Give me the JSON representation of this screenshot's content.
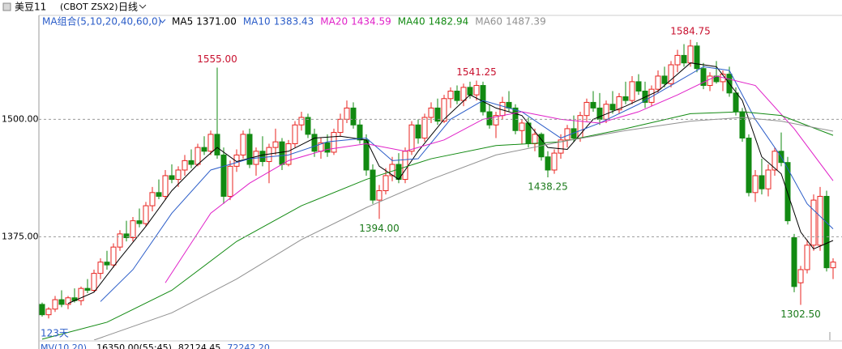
{
  "chart_data": {
    "type": "candlestick",
    "title": "美豆11",
    "subtitle": "(CBOT ZSX2)",
    "period": "日线",
    "ma_group": "MA组合(5,10,20,40,60,0)",
    "bar_count_label": "123天",
    "volume_header": [
      "MV(10,20)",
      "16350.00(55:45)",
      "82124.45",
      "72242.20"
    ],
    "up_color": "#e8231f",
    "down_color": "#128a12",
    "ylim": [
      1265,
      1608
    ],
    "yticks": [
      {
        "value": 1500,
        "label": "1500.00"
      },
      {
        "value": 1375,
        "label": "1375.00"
      }
    ],
    "grid": true,
    "open": [
      1303,
      1292,
      1298,
      1308,
      1303,
      1310,
      1307,
      1320,
      1318,
      1336,
      1348,
      1345,
      1364,
      1378,
      1374,
      1392,
      1389,
      1408,
      1422,
      1418,
      1440,
      1436,
      1446,
      1456,
      1452,
      1470,
      1466,
      1484,
      1462,
      1418,
      1450,
      1462,
      1484,
      1452,
      1466,
      1455,
      1470,
      1476,
      1452,
      1474,
      1494,
      1502,
      1484,
      1466,
      1475,
      1465,
      1486,
      1500,
      1512,
      1494,
      1478,
      1446,
      1414,
      1424,
      1440,
      1452,
      1436,
      1466,
      1494,
      1480,
      1502,
      1512,
      1498,
      1522,
      1530,
      1520,
      1534,
      1526,
      1536,
      1508,
      1494,
      1504,
      1518,
      1512,
      1488,
      1496,
      1474,
      1484,
      1460,
      1446,
      1464,
      1478,
      1490,
      1480,
      1504,
      1518,
      1512,
      1500,
      1516,
      1510,
      1524,
      1520,
      1540,
      1530,
      1518,
      1532,
      1546,
      1538,
      1558,
      1568,
      1560,
      1578,
      1554,
      1536,
      1546,
      1540,
      1548,
      1528,
      1508,
      1480,
      1422,
      1440,
      1426,
      1446,
      1466,
      1454,
      1374,
      1326,
      1340,
      1366,
      1366,
      1418,
      1342
    ],
    "high": [
      1305,
      1300,
      1312,
      1318,
      1312,
      1320,
      1322,
      1330,
      1340,
      1352,
      1360,
      1368,
      1382,
      1392,
      1396,
      1405,
      1412,
      1428,
      1436,
      1446,
      1452,
      1450,
      1462,
      1468,
      1474,
      1482,
      1488,
      1555,
      1470,
      1456,
      1468,
      1488,
      1490,
      1470,
      1482,
      1474,
      1490,
      1480,
      1478,
      1498,
      1508,
      1506,
      1490,
      1480,
      1484,
      1490,
      1506,
      1520,
      1518,
      1500,
      1484,
      1452,
      1430,
      1448,
      1460,
      1464,
      1470,
      1498,
      1500,
      1506,
      1518,
      1522,
      1526,
      1534,
      1536,
      1538,
      1540,
      1541.25,
      1540,
      1516,
      1508,
      1524,
      1530,
      1516,
      1500,
      1502,
      1490,
      1486,
      1466,
      1468,
      1484,
      1494,
      1504,
      1508,
      1522,
      1530,
      1528,
      1520,
      1530,
      1528,
      1540,
      1546,
      1548,
      1540,
      1536,
      1552,
      1556,
      1562,
      1574,
      1580,
      1584.75,
      1582,
      1560,
      1550,
      1562,
      1552,
      1556,
      1534,
      1512,
      1484,
      1446,
      1458,
      1452,
      1470,
      1486,
      1460,
      1378,
      1344,
      1372,
      1420,
      1428,
      1424,
      1352
    ],
    "low": [
      1290,
      1288,
      1295,
      1300,
      1298,
      1305,
      1302,
      1315,
      1316,
      1330,
      1340,
      1342,
      1360,
      1370,
      1370,
      1385,
      1386,
      1402,
      1415,
      1414,
      1432,
      1428,
      1440,
      1448,
      1450,
      1462,
      1462,
      1458,
      1410,
      1414,
      1444,
      1458,
      1448,
      1440,
      1450,
      1432,
      1462,
      1446,
      1450,
      1470,
      1488,
      1480,
      1460,
      1458,
      1460,
      1462,
      1482,
      1496,
      1490,
      1474,
      1440,
      1410,
      1394,
      1420,
      1434,
      1432,
      1432,
      1462,
      1474,
      1476,
      1496,
      1494,
      1496,
      1512,
      1516,
      1514,
      1522,
      1520,
      1504,
      1490,
      1480,
      1500,
      1508,
      1484,
      1474,
      1470,
      1466,
      1456,
      1438.25,
      1442,
      1458,
      1470,
      1476,
      1476,
      1498,
      1508,
      1494,
      1496,
      1506,
      1506,
      1516,
      1516,
      1526,
      1512,
      1514,
      1528,
      1534,
      1534,
      1550,
      1556,
      1556,
      1550,
      1532,
      1530,
      1538,
      1530,
      1524,
      1504,
      1476,
      1418,
      1412,
      1420,
      1418,
      1440,
      1450,
      1388,
      1316,
      1302.5,
      1336,
      1360,
      1360,
      1338,
      1330
    ],
    "close": [
      1292,
      1298,
      1308,
      1303,
      1310,
      1307,
      1320,
      1318,
      1336,
      1348,
      1345,
      1364,
      1378,
      1374,
      1392,
      1389,
      1408,
      1422,
      1418,
      1440,
      1436,
      1446,
      1456,
      1452,
      1470,
      1466,
      1484,
      1462,
      1418,
      1450,
      1462,
      1484,
      1452,
      1466,
      1455,
      1470,
      1476,
      1452,
      1474,
      1494,
      1502,
      1484,
      1466,
      1475,
      1465,
      1486,
      1500,
      1512,
      1494,
      1478,
      1446,
      1414,
      1424,
      1440,
      1452,
      1436,
      1466,
      1494,
      1480,
      1502,
      1512,
      1498,
      1522,
      1530,
      1520,
      1534,
      1526,
      1536,
      1508,
      1494,
      1504,
      1518,
      1512,
      1488,
      1496,
      1474,
      1484,
      1460,
      1446,
      1464,
      1478,
      1490,
      1480,
      1504,
      1518,
      1512,
      1500,
      1516,
      1510,
      1524,
      1520,
      1540,
      1530,
      1518,
      1532,
      1546,
      1538,
      1558,
      1568,
      1560,
      1578,
      1554,
      1536,
      1546,
      1540,
      1548,
      1528,
      1508,
      1480,
      1422,
      1440,
      1426,
      1446,
      1466,
      1454,
      1392,
      1322,
      1340,
      1366,
      1414,
      1418,
      1342,
      1348
    ],
    "annotations": [
      {
        "index": 27,
        "value": 1555,
        "label": "1555.00",
        "color": "#c8102e",
        "side": "above"
      },
      {
        "index": 52,
        "value": 1394,
        "label": "1394.00",
        "color": "#1a7a1a",
        "side": "below"
      },
      {
        "index": 67,
        "value": 1541.25,
        "label": "1541.25",
        "color": "#c8102e",
        "side": "above"
      },
      {
        "index": 78,
        "value": 1438.25,
        "label": "1438.25",
        "color": "#1a7a1a",
        "side": "below"
      },
      {
        "index": 100,
        "value": 1584.75,
        "label": "1584.75",
        "color": "#c8102e",
        "side": "above"
      },
      {
        "index": 117,
        "value": 1302.5,
        "label": "1302.50",
        "color": "#1a7a1a",
        "side": "below"
      }
    ],
    "series": [
      {
        "name": "MA5",
        "color": "#000000",
        "last": {
          "value": 1371,
          "label": "1371.00"
        },
        "x": [
          4,
          8,
          12,
          16,
          20,
          24,
          27,
          30,
          34,
          38,
          42,
          46,
          50,
          52,
          55,
          58,
          62,
          66,
          70,
          74,
          78,
          81,
          85,
          90,
          95,
          100,
          104,
          108,
          111,
          114,
          117,
          119,
          122
        ],
        "values": [
          1304,
          1316,
          1352,
          1386,
          1424,
          1452,
          1470,
          1455,
          1462,
          1466,
          1480,
          1482,
          1478,
          1450,
          1436,
          1466,
          1500,
          1526,
          1512,
          1504,
          1470,
          1468,
          1500,
          1514,
          1530,
          1560,
          1556,
          1520,
          1460,
          1442,
          1380,
          1362,
          1371
        ]
      },
      {
        "name": "MA10",
        "color": "#2a5cc8",
        "last": {
          "value": 1383.43,
          "label": "1383.43"
        },
        "x": [
          9,
          14,
          20,
          26,
          32,
          38,
          44,
          50,
          54,
          58,
          63,
          68,
          74,
          80,
          86,
          92,
          98,
          102,
          106,
          110,
          114,
          118,
          122
        ],
        "values": [
          1306,
          1340,
          1400,
          1446,
          1458,
          1462,
          1476,
          1480,
          1456,
          1458,
          1500,
          1520,
          1508,
          1480,
          1496,
          1516,
          1540,
          1556,
          1552,
          1500,
          1460,
          1410,
          1383.43
        ]
      },
      {
        "name": "MA20",
        "color": "#e020c8",
        "last": {
          "value": 1434.59,
          "label": "1434.59"
        },
        "x": [
          19,
          26,
          32,
          38,
          44,
          50,
          56,
          62,
          68,
          74,
          80,
          86,
          92,
          98,
          104,
          110,
          116,
          122
        ],
        "values": [
          1326,
          1400,
          1432,
          1456,
          1468,
          1474,
          1466,
          1478,
          1500,
          1508,
          1500,
          1496,
          1508,
          1526,
          1546,
          1536,
          1490,
          1434.59
        ]
      },
      {
        "name": "MA40",
        "color": "#128a12",
        "last": {
          "value": 1482.94,
          "label": "1482.94"
        },
        "x": [
          0,
          10,
          20,
          30,
          40,
          50,
          60,
          70,
          80,
          90,
          100,
          108,
          114,
          122
        ],
        "values": [
          1266,
          1284,
          1318,
          1370,
          1408,
          1436,
          1458,
          1472,
          1476,
          1490,
          1506,
          1508,
          1504,
          1482.94
        ]
      },
      {
        "name": "MA60",
        "color": "#909090",
        "last": {
          "value": 1487.39,
          "label": "1487.39"
        },
        "x": [
          8,
          20,
          30,
          40,
          50,
          60,
          70,
          80,
          90,
          100,
          108,
          114,
          122
        ],
        "values": [
          1265,
          1294,
          1330,
          1372,
          1406,
          1436,
          1462,
          1476,
          1488,
          1498,
          1502,
          1498,
          1487.39
        ]
      }
    ]
  }
}
